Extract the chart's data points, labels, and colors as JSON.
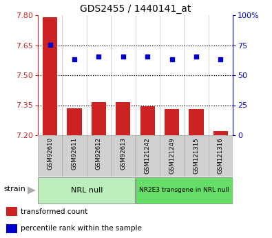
{
  "title": "GDS2455 / 1440141_at",
  "samples": [
    "GSM92610",
    "GSM92611",
    "GSM92612",
    "GSM92613",
    "GSM121242",
    "GSM121249",
    "GSM121315",
    "GSM121316"
  ],
  "bar_values": [
    7.79,
    7.335,
    7.365,
    7.365,
    7.345,
    7.33,
    7.33,
    7.22
  ],
  "scatter_values": [
    75.5,
    63.0,
    65.5,
    65.5,
    65.5,
    63.5,
    65.5,
    63.0
  ],
  "ylim_left": [
    7.2,
    7.8
  ],
  "ylim_right": [
    0,
    100
  ],
  "yticks_left": [
    7.2,
    7.35,
    7.5,
    7.65,
    7.8
  ],
  "yticks_right": [
    0,
    25,
    50,
    75,
    100
  ],
  "ytick_labels_right": [
    "0",
    "25",
    "50",
    "75",
    "100%"
  ],
  "hlines": [
    7.35,
    7.5,
    7.65
  ],
  "bar_color": "#cc2222",
  "scatter_color": "#0000cc",
  "bar_bottom": 7.2,
  "groups": [
    {
      "label": "NRL null",
      "start": 0,
      "end": 4,
      "color": "#bbeebb"
    },
    {
      "label": "NR2E3 transgene in NRL null",
      "start": 4,
      "end": 8,
      "color": "#66dd66"
    }
  ],
  "strain_label": "strain",
  "legend_items": [
    {
      "color": "#cc2222",
      "label": "transformed count"
    },
    {
      "color": "#0000cc",
      "label": "percentile rank within the sample"
    }
  ],
  "left_tick_color": "#cc2222",
  "right_tick_color": "#0000cc",
  "plot_bg": "#ffffff",
  "sample_box_color": "#d0d0d0",
  "sample_box_edge": "#aaaaaa"
}
